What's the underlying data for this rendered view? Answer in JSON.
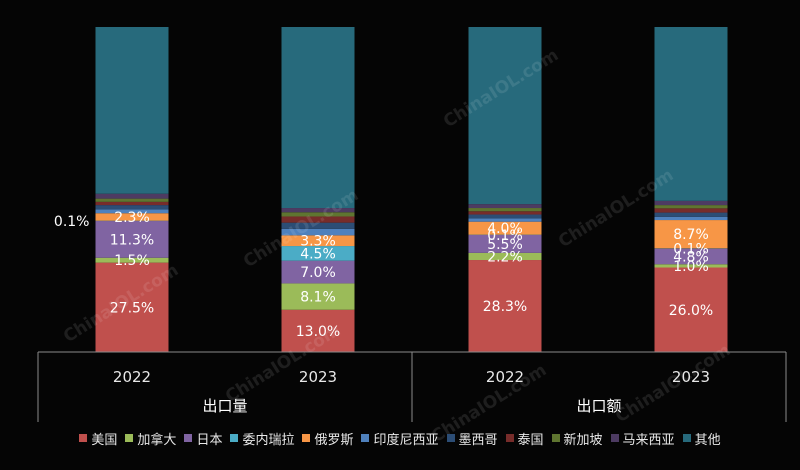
{
  "watermark": "ChinaIOL.com",
  "chart_data": {
    "type": "bar",
    "stacked": true,
    "normalized": true,
    "ylim": [
      0,
      100
    ],
    "grid": false,
    "legend_position": "bottom",
    "groups": [
      {
        "label": "出口量",
        "categories": [
          "2022",
          "2023"
        ]
      },
      {
        "label": "出口额",
        "categories": [
          "2022",
          "2023"
        ]
      }
    ],
    "categories": [
      "2022",
      "2023",
      "2022",
      "2023"
    ],
    "series": [
      {
        "name": "美国",
        "color": "#c0504d",
        "values": [
          27.5,
          13.0,
          28.3,
          26.0
        ],
        "labels": [
          "27.5%",
          "13.0%",
          "28.3%",
          "26.0%"
        ]
      },
      {
        "name": "加拿大",
        "color": "#9bbb59",
        "values": [
          1.5,
          8.1,
          2.2,
          1.0
        ],
        "labels": [
          "1.5%",
          "8.1%",
          "2.2%",
          "1.0%"
        ]
      },
      {
        "name": "日本",
        "color": "#8064a2",
        "values": [
          11.3,
          7.0,
          5.5,
          4.8
        ],
        "labels": [
          "11.3%",
          "7.0%",
          "5.5%",
          "4.8%"
        ]
      },
      {
        "name": "委内瑞拉",
        "color": "#4bacc6",
        "values": [
          0.1,
          4.5,
          0.1,
          0.1
        ],
        "labels": [
          "0.1%",
          "4.5%",
          "0.1%",
          "0.1%"
        ]
      },
      {
        "name": "俄罗斯",
        "color": "#f79646",
        "values": [
          2.3,
          3.3,
          4.0,
          8.7
        ],
        "labels": [
          "2.3%",
          "3.3%",
          "4.0%",
          "8.7%"
        ]
      },
      {
        "name": "印度尼西亚",
        "color": "#4f81bd",
        "values": [
          1.2,
          2.0,
          1.0,
          1.0
        ],
        "labels": [
          "",
          "",
          "",
          ""
        ]
      },
      {
        "name": "墨西哥",
        "color": "#2c4d75",
        "values": [
          1.3,
          1.9,
          1.2,
          1.3
        ],
        "labels": [
          "",
          "",
          "",
          ""
        ]
      },
      {
        "name": "泰国",
        "color": "#772c2a",
        "values": [
          1.0,
          1.9,
          1.0,
          1.3
        ],
        "labels": [
          "",
          "",
          "",
          ""
        ]
      },
      {
        "name": "新加坡",
        "color": "#5f7530",
        "values": [
          1.0,
          1.3,
          1.0,
          1.0
        ],
        "labels": [
          "",
          "",
          "",
          ""
        ]
      },
      {
        "name": "马来西亚",
        "color": "#4d3b62",
        "values": [
          1.5,
          1.3,
          1.2,
          1.3
        ],
        "labels": [
          "",
          "",
          "",
          ""
        ]
      },
      {
        "name": "其他",
        "color": "#276a7c",
        "values": [
          51.3,
          55.7,
          54.5,
          53.5
        ],
        "labels": [
          "",
          "",
          "",
          ""
        ]
      }
    ]
  }
}
